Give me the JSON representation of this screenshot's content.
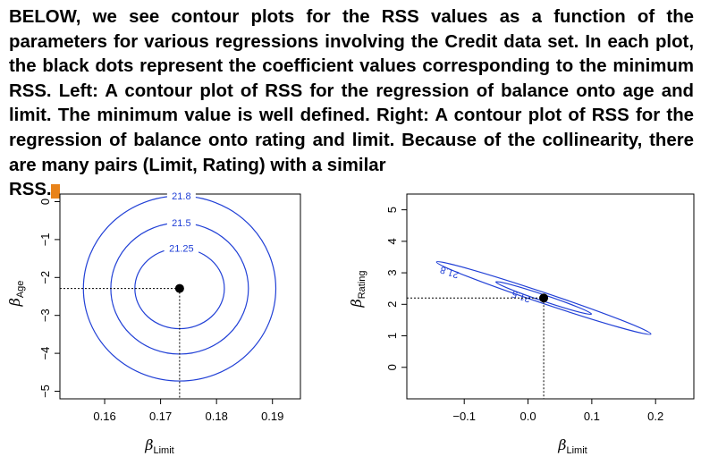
{
  "caption": {
    "text": "BELOW, we see contour plots for the RSS values as a function of the parameters  for various regressions involving the Credit data set. In each plot, the black dots represent the coefficient values corresponding to the minimum RSS. Left: A contour plot of RSS for the regression of balance onto age and limit. The minimum value is well defined. Right: A contour plot of RSS for the regression of balance onto rating and limit. Because of the collinearity, there are many pairs (Limit, Rating) with a similar",
    "tail": "RSS."
  },
  "colors": {
    "contour": "#2140d6",
    "marker": "#e8831a"
  },
  "chart_data": [
    {
      "type": "contour",
      "xlabel_symbol": "β",
      "xlabel_sub": "Limit",
      "ylabel_symbol": "β",
      "ylabel_sub": "Age",
      "xlim": [
        0.152,
        0.195
      ],
      "ylim": [
        -5.2,
        0.2
      ],
      "xticks": [
        0.16,
        0.17,
        0.18,
        0.19
      ],
      "xtick_labels": [
        "0.16",
        "0.17",
        "0.18",
        "0.19"
      ],
      "yticks": [
        0,
        -1,
        -2,
        -3,
        -4,
        -5
      ],
      "ytick_labels": [
        "0",
        "−1",
        "−2",
        "−3",
        "−4",
        "−5"
      ],
      "minimum": {
        "x": 0.1734,
        "y": -2.29
      },
      "contour_levels": [
        {
          "label": "21.25",
          "rx": 0.008,
          "ry": 1.06
        },
        {
          "label": "21.5",
          "rx": 0.0123,
          "ry": 1.73
        },
        {
          "label": "21.8",
          "rx": 0.0172,
          "ry": 2.44
        }
      ],
      "grid": false
    },
    {
      "type": "contour",
      "xlabel_symbol": "β",
      "xlabel_sub": "Limit",
      "ylabel_symbol": "β",
      "ylabel_sub": "Rating",
      "xlim": [
        -0.19,
        0.26
      ],
      "ylim": [
        -1.0,
        5.5
      ],
      "xticks": [
        -0.1,
        0.0,
        0.1,
        0.2
      ],
      "xtick_labels": [
        "−0.1",
        "0.0",
        "0.1",
        "0.2"
      ],
      "yticks": [
        0,
        1,
        2,
        3,
        4,
        5
      ],
      "ytick_labels": [
        "0",
        "1",
        "2",
        "3",
        "4",
        "5"
      ],
      "minimum": {
        "x": 0.0246,
        "y": 2.2
      },
      "contour_levels": [
        {
          "label": "21.5",
          "half_length": 0.075,
          "slope": -6.8
        },
        {
          "label": "21.8",
          "half_length": 0.168,
          "slope": -6.8
        }
      ],
      "grid": false
    }
  ]
}
